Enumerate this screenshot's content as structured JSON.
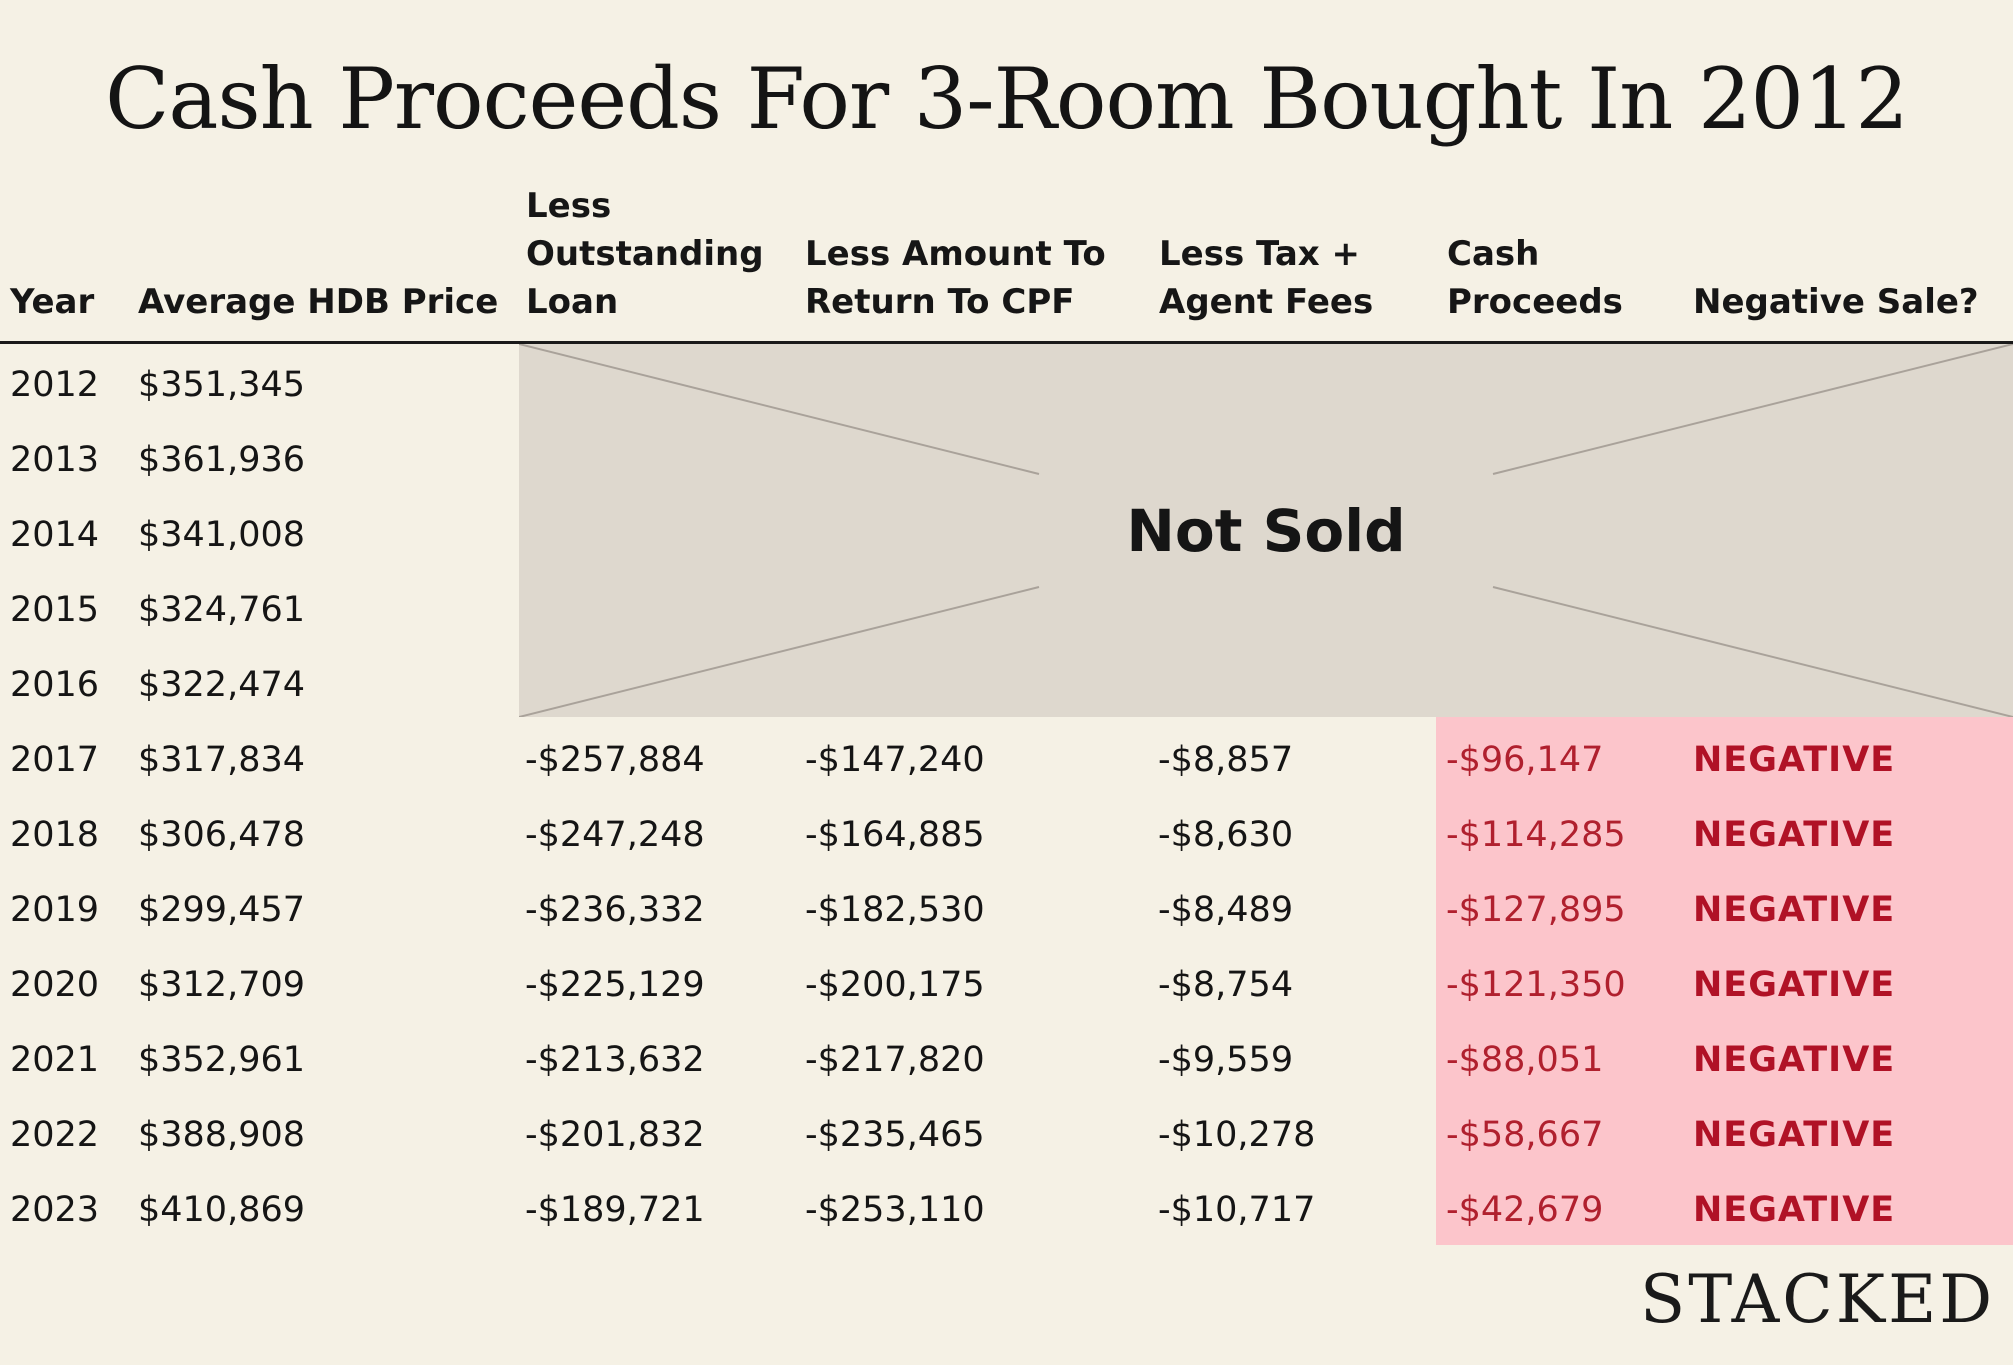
{
  "chart_data": {
    "type": "table",
    "title": "Cash Proceeds For 3-Room Bought In 2012",
    "columns": [
      "Year",
      "Average HDB Price",
      "Less Outstanding Loan",
      "Less Amount To Return To CPF",
      "Less Tax + Agent Fees",
      "Cash Proceeds",
      "Negative Sale?"
    ],
    "not_sold_label": "Not Sold",
    "rows": [
      {
        "year": "2012",
        "price": "$351,345",
        "loan": "",
        "cpf": "",
        "fees": "",
        "proceeds": "",
        "negative": ""
      },
      {
        "year": "2013",
        "price": "$361,936",
        "loan": "",
        "cpf": "",
        "fees": "",
        "proceeds": "",
        "negative": ""
      },
      {
        "year": "2014",
        "price": "$341,008",
        "loan": "",
        "cpf": "",
        "fees": "",
        "proceeds": "",
        "negative": ""
      },
      {
        "year": "2015",
        "price": "$324,761",
        "loan": "",
        "cpf": "",
        "fees": "",
        "proceeds": "",
        "negative": ""
      },
      {
        "year": "2016",
        "price": "$322,474",
        "loan": "",
        "cpf": "",
        "fees": "",
        "proceeds": "",
        "negative": ""
      },
      {
        "year": "2017",
        "price": "$317,834",
        "loan": "-$257,884",
        "cpf": "-$147,240",
        "fees": "-$8,857",
        "proceeds": "-$96,147",
        "negative": "NEGATIVE"
      },
      {
        "year": "2018",
        "price": "$306,478",
        "loan": "-$247,248",
        "cpf": "-$164,885",
        "fees": "-$8,630",
        "proceeds": "-$114,285",
        "negative": "NEGATIVE"
      },
      {
        "year": "2019",
        "price": "$299,457",
        "loan": "-$236,332",
        "cpf": "-$182,530",
        "fees": "-$8,489",
        "proceeds": "-$127,895",
        "negative": "NEGATIVE"
      },
      {
        "year": "2020",
        "price": "$312,709",
        "loan": "-$225,129",
        "cpf": "-$200,175",
        "fees": "-$8,754",
        "proceeds": "-$121,350",
        "negative": "NEGATIVE"
      },
      {
        "year": "2021",
        "price": "$352,961",
        "loan": "-$213,632",
        "cpf": "-$217,820",
        "fees": "-$9,559",
        "proceeds": "-$88,051",
        "negative": "NEGATIVE"
      },
      {
        "year": "2022",
        "price": "$388,908",
        "loan": "-$201,832",
        "cpf": "-$235,465",
        "fees": "-$10,278",
        "proceeds": "-$58,667",
        "negative": "NEGATIVE"
      },
      {
        "year": "2023",
        "price": "$410,869",
        "loan": "-$189,721",
        "cpf": "-$253,110",
        "fees": "-$10,717",
        "proceeds": "-$42,679",
        "negative": "NEGATIVE"
      }
    ]
  },
  "brand": "STACKED",
  "colors": {
    "background": "#f5f1e5",
    "not_sold_fill": "#ded8ce",
    "negative_fill": "#fcc5cb",
    "negative_text": "#b01226"
  }
}
